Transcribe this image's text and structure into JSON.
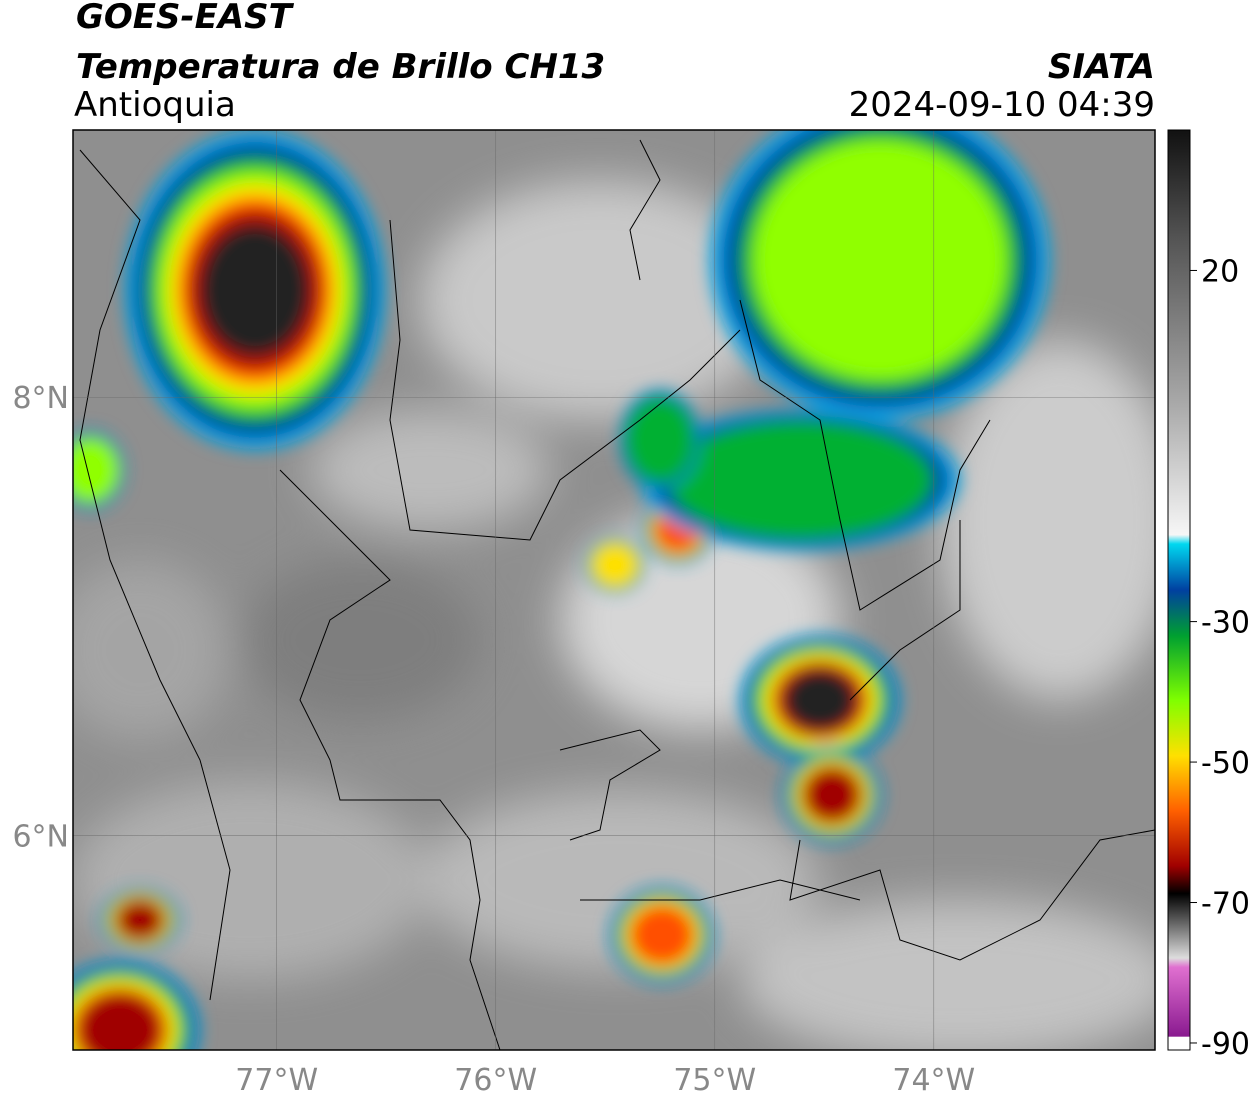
{
  "header": {
    "title": "GOES-EAST",
    "subtitle": "Temperatura de Brillo CH13",
    "region": "Antioquia",
    "source": "SIATA",
    "timestamp": "2024-09-10 04:39"
  },
  "map": {
    "xlim": [
      -77.93,
      -72.99
    ],
    "ylim": [
      5.02,
      9.22
    ],
    "xticks": [
      {
        "value": -77,
        "label": "77°W"
      },
      {
        "value": -76,
        "label": "76°W"
      },
      {
        "value": -75,
        "label": "75°W"
      },
      {
        "value": -74,
        "label": "74°W"
      }
    ],
    "yticks": [
      {
        "value": 8,
        "label": "8°N"
      },
      {
        "value": 6,
        "label": "6°N"
      }
    ]
  },
  "colorbar": {
    "ylim": [
      -91,
      40
    ],
    "yticks": [
      20,
      -30,
      -50,
      -70,
      -90
    ]
  }
}
